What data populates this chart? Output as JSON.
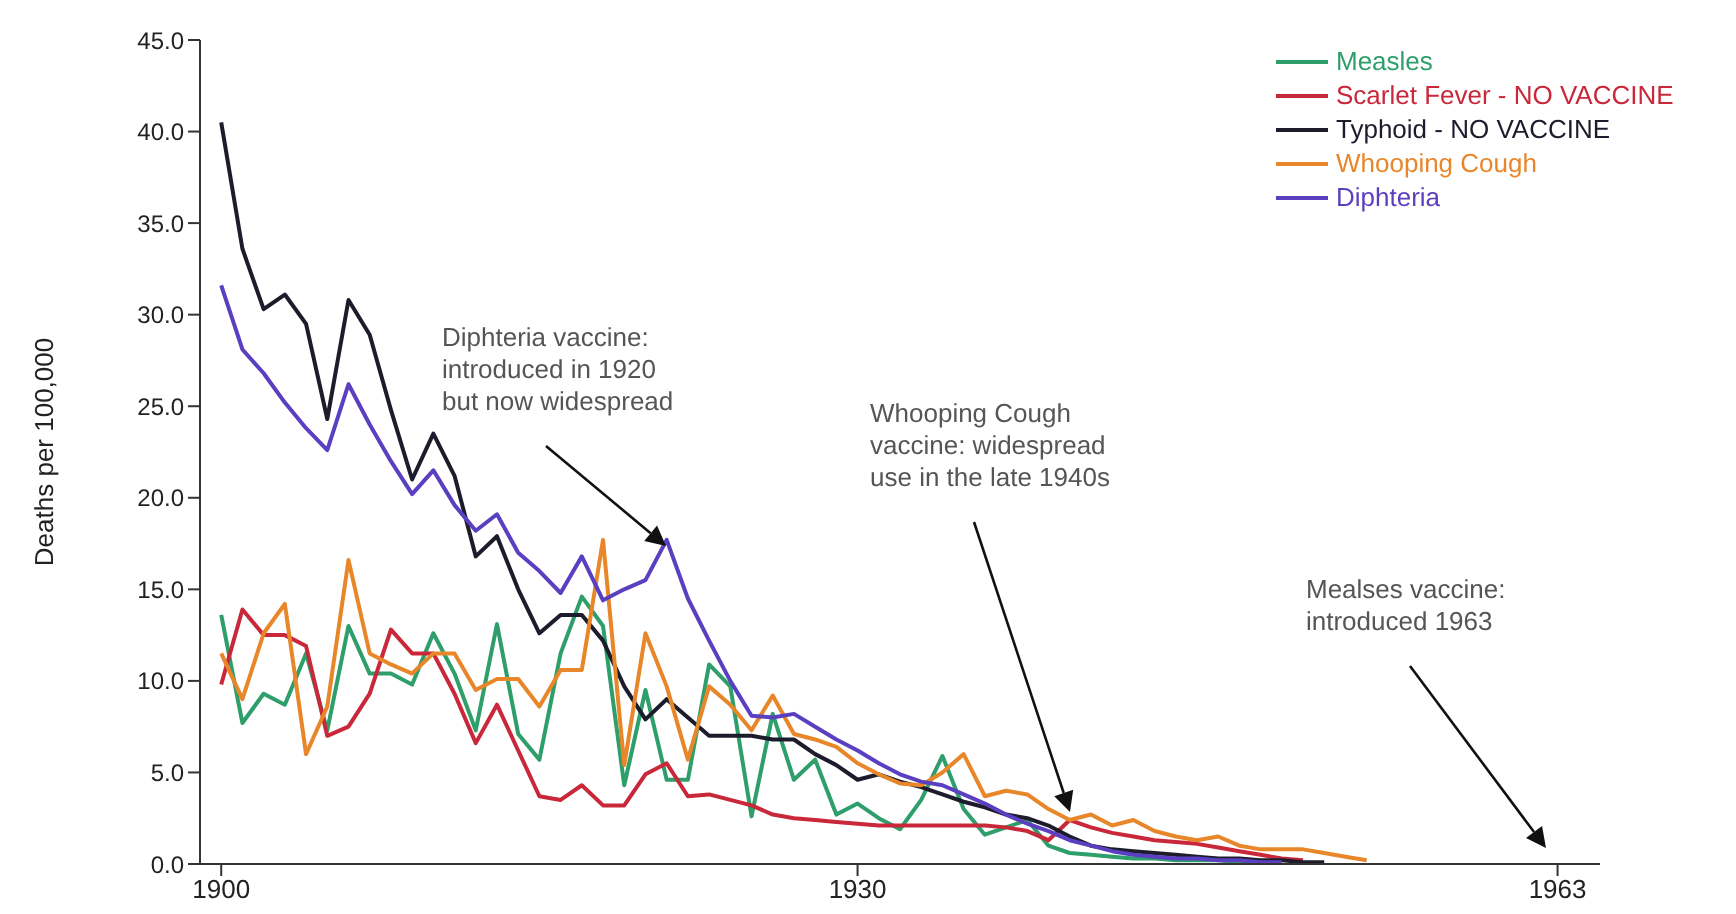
{
  "chart_data": {
    "type": "line",
    "ylabel": "Deaths per 100,000",
    "x": [
      1900,
      1901,
      1902,
      1903,
      1904,
      1905,
      1906,
      1907,
      1908,
      1909,
      1910,
      1911,
      1912,
      1913,
      1914,
      1915,
      1916,
      1917,
      1918,
      1919,
      1920,
      1921,
      1922,
      1923,
      1924,
      1925,
      1926,
      1927,
      1928,
      1929,
      1930,
      1931,
      1932,
      1933,
      1934,
      1935,
      1936,
      1937,
      1938,
      1939,
      1940,
      1941,
      1942,
      1943,
      1944,
      1945,
      1946,
      1947,
      1948,
      1949,
      1950,
      1951,
      1952,
      1953,
      1954
    ],
    "series": [
      {
        "name": "Measles",
        "color": "#2e9e6b",
        "values": [
          13.6,
          7.7,
          9.3,
          8.7,
          11.5,
          7.3,
          13.0,
          10.4,
          10.4,
          9.8,
          12.6,
          10.4,
          7.3,
          13.1,
          7.1,
          5.7,
          11.5,
          14.6,
          13.0,
          4.3,
          9.5,
          4.6,
          4.6,
          10.9,
          9.7,
          2.6,
          8.2,
          4.6,
          5.7,
          2.7,
          3.3,
          2.5,
          1.9,
          3.5,
          5.9,
          3.0,
          1.6,
          2.0,
          2.4,
          1.0,
          0.6,
          0.5,
          0.4,
          0.3,
          0.3,
          0.2,
          0.2,
          0.2,
          0.1,
          0.1,
          null,
          null,
          null,
          null,
          null
        ]
      },
      {
        "name": "Scarlet Fever - NO VACCINE",
        "color": "#c8283a",
        "values": [
          9.8,
          13.9,
          12.5,
          12.5,
          11.9,
          7.0,
          7.5,
          9.3,
          12.8,
          11.5,
          11.5,
          9.3,
          6.6,
          8.7,
          6.2,
          3.7,
          3.5,
          4.3,
          3.2,
          3.2,
          4.9,
          5.5,
          3.7,
          3.8,
          3.5,
          3.2,
          2.7,
          2.5,
          2.4,
          2.3,
          2.2,
          2.1,
          2.1,
          2.1,
          2.1,
          2.1,
          2.1,
          2.0,
          1.8,
          1.3,
          2.4,
          2.0,
          1.7,
          1.5,
          1.3,
          1.2,
          1.1,
          0.9,
          0.7,
          0.5,
          0.3,
          0.2,
          null,
          null,
          null
        ]
      },
      {
        "name": "Typhoid - NO VACCINE",
        "color": "#1c1c2c",
        "values": [
          40.5,
          33.6,
          30.3,
          31.1,
          29.5,
          24.3,
          30.8,
          28.9,
          24.8,
          21.0,
          23.5,
          21.2,
          16.8,
          17.9,
          15.0,
          12.6,
          13.6,
          13.6,
          12.2,
          9.7,
          7.9,
          9.0,
          8.0,
          7.0,
          7.0,
          7.0,
          6.8,
          6.8,
          6.0,
          5.4,
          4.6,
          4.9,
          4.5,
          4.2,
          3.8,
          3.4,
          3.1,
          2.7,
          2.5,
          2.1,
          1.5,
          1.0,
          0.8,
          0.7,
          0.6,
          0.5,
          0.4,
          0.3,
          0.3,
          0.2,
          0.2,
          0.1,
          0.1,
          null,
          null
        ]
      },
      {
        "name": "Whooping Cough",
        "color": "#e8872a",
        "values": [
          11.5,
          9.0,
          12.6,
          14.2,
          6.0,
          8.6,
          16.6,
          11.5,
          10.9,
          10.4,
          11.5,
          11.5,
          9.5,
          10.1,
          10.1,
          8.6,
          10.6,
          10.6,
          17.7,
          5.4,
          12.6,
          9.7,
          5.7,
          9.7,
          8.7,
          7.3,
          9.2,
          7.1,
          6.8,
          6.4,
          5.5,
          4.9,
          4.4,
          4.3,
          5.0,
          6.0,
          3.7,
          4.0,
          3.8,
          3.0,
          2.4,
          2.7,
          2.1,
          2.4,
          1.8,
          1.5,
          1.3,
          1.5,
          1.0,
          0.8,
          0.8,
          0.8,
          0.6,
          0.4,
          0.2
        ]
      },
      {
        "name": "Diphteria",
        "color": "#5a3fc0",
        "values": [
          31.6,
          28.1,
          26.8,
          25.2,
          23.8,
          22.6,
          26.2,
          24.0,
          22.0,
          20.2,
          21.5,
          19.6,
          18.2,
          19.1,
          17.0,
          16.0,
          14.8,
          16.8,
          14.4,
          15.0,
          15.5,
          17.7,
          14.5,
          12.2,
          10.0,
          8.1,
          8.0,
          8.2,
          7.5,
          6.8,
          6.2,
          5.5,
          4.9,
          4.5,
          4.3,
          3.8,
          3.3,
          2.7,
          2.2,
          1.8,
          1.3,
          1.0,
          0.7,
          0.5,
          0.4,
          0.3,
          0.3,
          0.2,
          0.2,
          0.1,
          0.1,
          null,
          null,
          null,
          null
        ]
      }
    ],
    "xlim": [
      1899,
      1965
    ],
    "xticks": [
      1900,
      1930,
      1963
    ],
    "ylim": [
      0,
      45
    ],
    "yticks": [
      {
        "value": 0,
        "label": "0.0"
      },
      {
        "value": 5,
        "label": "5.0"
      },
      {
        "value": 10,
        "label": "10.0"
      },
      {
        "value": 15,
        "label": "15.0"
      },
      {
        "value": 20,
        "label": "20.0"
      },
      {
        "value": 25,
        "label": "25.0"
      },
      {
        "value": 30,
        "label": "30.0"
      },
      {
        "value": 35,
        "label": "35.0"
      },
      {
        "value": 40,
        "label": "40.0"
      },
      {
        "value": 45,
        "label": "45.0"
      }
    ],
    "grid": false,
    "legend": "top right",
    "annotations": [
      "Diphteria vaccine:\nintroduced in 1920\nbut now widespread",
      "Whooping Cough\nvaccine: widespread\nuse in the late 1940s",
      "Mealses vaccine:\nintroduced 1963"
    ]
  }
}
